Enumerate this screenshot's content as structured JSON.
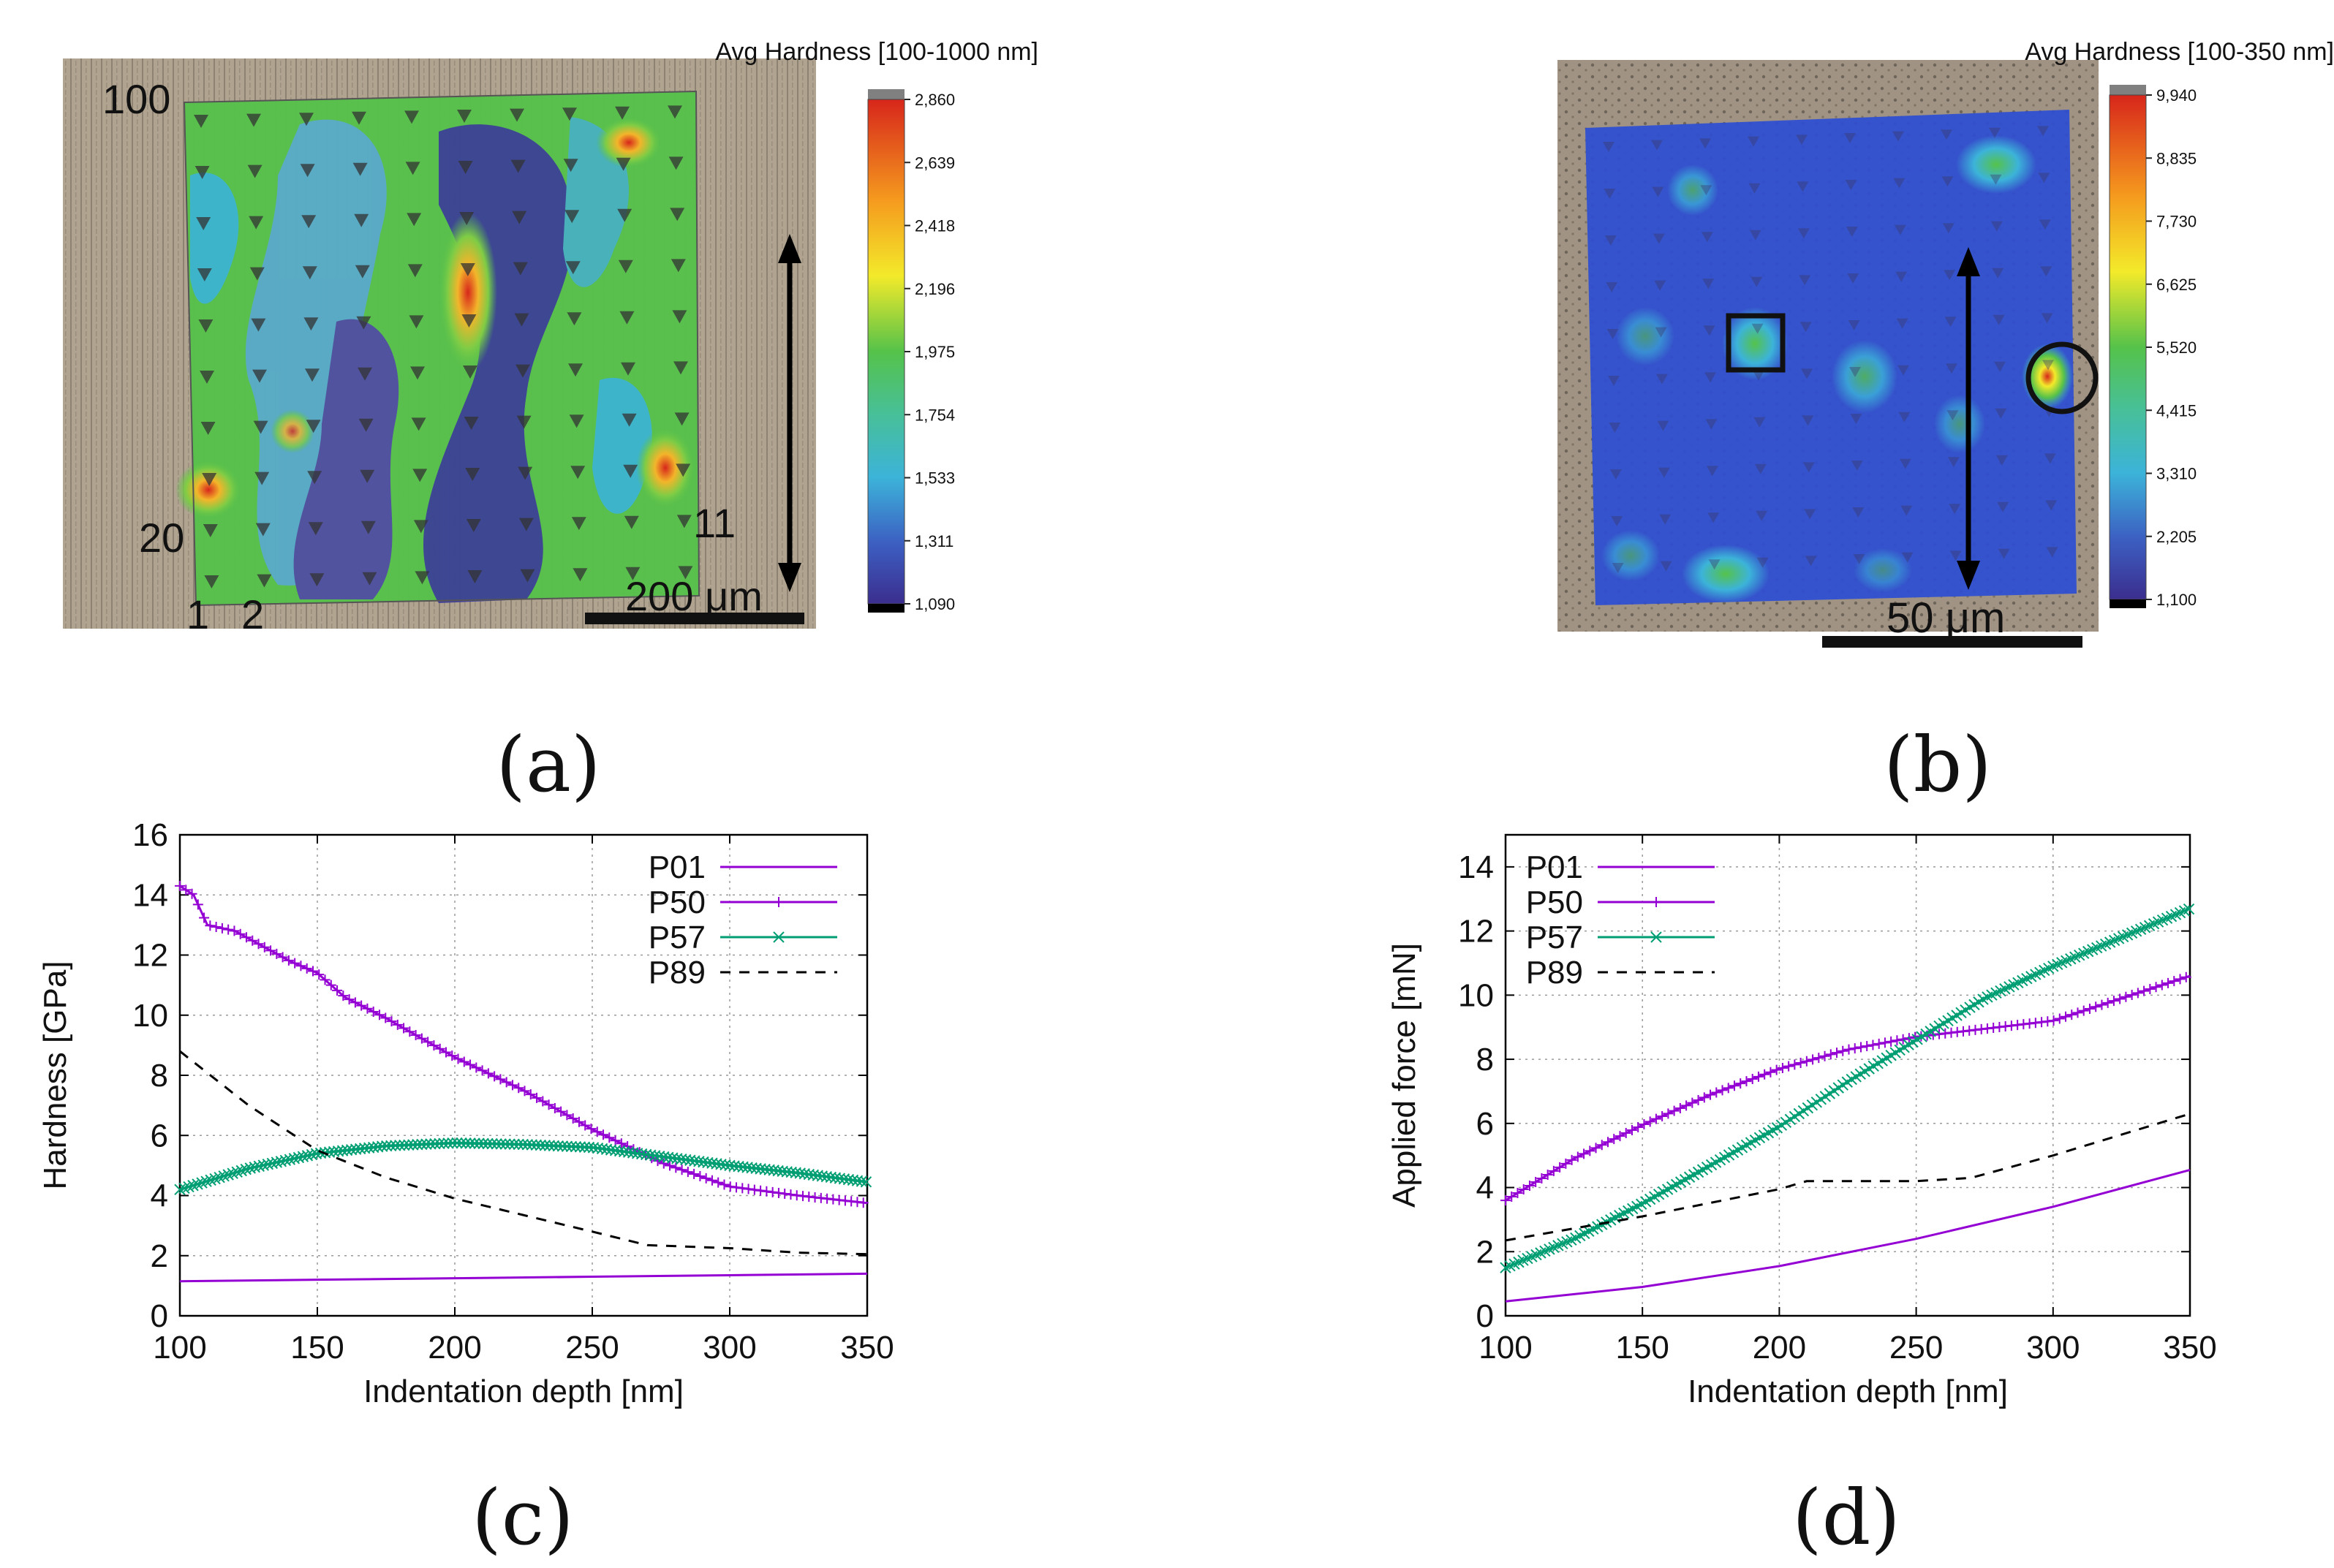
{
  "panels": {
    "a": {
      "caption": "(a)",
      "colorbar_title": "Avg Hardness [100-1000 nm]",
      "colorbar_ticks": [
        "2,860",
        "2,639",
        "2,418",
        "2,196",
        "1,975",
        "1,754",
        "1,533",
        "1,311",
        "1,090"
      ],
      "grid_labels": {
        "top_left": "100",
        "bottom_left_row": "20",
        "bottom_left": "1",
        "bottom_second": "2",
        "right_row": "11"
      },
      "scale_bar": "200 μm",
      "colors": {
        "background_sample": "#a89a86",
        "high": "#d7261b",
        "mid": "#55c24a",
        "low": "#3b3a9a"
      }
    },
    "b": {
      "caption": "(b)",
      "colorbar_title": "Avg Hardness [100-350 nm]",
      "colorbar_ticks": [
        "9,940",
        "8,835",
        "7,730",
        "6,625",
        "5,520",
        "4,415",
        "3,310",
        "2,205",
        "1,100"
      ],
      "scale_bar": "50 μm",
      "colors": {
        "background_sample": "#9a8e80",
        "base": "#2f4fd0"
      }
    },
    "c": {
      "caption": "(c)"
    },
    "d": {
      "caption": "(d)"
    }
  },
  "chart_data": [
    {
      "type": "line",
      "id": "c",
      "xlabel": "Indentation depth [nm]",
      "ylabel": "Hardness [GPa]",
      "xlim": [
        100,
        350
      ],
      "ylim": [
        0,
        16
      ],
      "xticks": [
        100,
        150,
        200,
        250,
        300,
        350
      ],
      "yticks": [
        0,
        2,
        4,
        6,
        8,
        10,
        12,
        14,
        16
      ],
      "grid": true,
      "legend": "top-right",
      "series": [
        {
          "name": "P01",
          "color": "#9400d3",
          "style": "solid",
          "marker": "none",
          "x": [
            100,
            150,
            200,
            250,
            300,
            350
          ],
          "y": [
            1.15,
            1.2,
            1.25,
            1.3,
            1.35,
            1.4
          ]
        },
        {
          "name": "P50",
          "color": "#9400d3",
          "style": "solid",
          "marker": "plus",
          "x": [
            100,
            105,
            110,
            120,
            130,
            140,
            150,
            160,
            175,
            200,
            225,
            250,
            275,
            300,
            325,
            350
          ],
          "y": [
            14.3,
            14.0,
            13.0,
            12.8,
            12.3,
            11.8,
            11.4,
            10.6,
            9.9,
            8.6,
            7.5,
            6.2,
            5.1,
            4.3,
            4.0,
            3.75
          ]
        },
        {
          "name": "P57",
          "color": "#009e73",
          "style": "solid",
          "marker": "x",
          "x": [
            100,
            125,
            150,
            175,
            200,
            225,
            250,
            275,
            300,
            325,
            350
          ],
          "y": [
            4.2,
            4.9,
            5.4,
            5.65,
            5.75,
            5.7,
            5.6,
            5.3,
            5.0,
            4.75,
            4.45
          ]
        },
        {
          "name": "P89",
          "color": "#000000",
          "style": "dashed",
          "marker": "none",
          "x": [
            100,
            125,
            150,
            175,
            200,
            225,
            250,
            270,
            300,
            325,
            350
          ],
          "y": [
            8.8,
            7.0,
            5.5,
            4.6,
            3.9,
            3.35,
            2.8,
            2.35,
            2.25,
            2.1,
            2.05
          ]
        }
      ]
    },
    {
      "type": "line",
      "id": "d",
      "xlabel": "Indentation depth [nm]",
      "ylabel": "Applied force [mN]",
      "xlim": [
        100,
        350
      ],
      "ylim": [
        0,
        15
      ],
      "xticks": [
        100,
        150,
        200,
        250,
        300,
        350
      ],
      "yticks": [
        0,
        2,
        4,
        6,
        8,
        10,
        12,
        14
      ],
      "grid": true,
      "legend": "top-left",
      "series": [
        {
          "name": "P01",
          "color": "#9400d3",
          "style": "solid",
          "marker": "none",
          "x": [
            100,
            150,
            200,
            250,
            300,
            350
          ],
          "y": [
            0.45,
            0.9,
            1.55,
            2.4,
            3.4,
            4.55
          ]
        },
        {
          "name": "P50",
          "color": "#9400d3",
          "style": "solid",
          "marker": "plus",
          "x": [
            100,
            125,
            150,
            175,
            200,
            225,
            250,
            275,
            300,
            325,
            350
          ],
          "y": [
            3.6,
            4.9,
            5.95,
            6.9,
            7.7,
            8.3,
            8.7,
            8.95,
            9.2,
            9.9,
            10.6
          ]
        },
        {
          "name": "P57",
          "color": "#009e73",
          "style": "solid",
          "marker": "x",
          "x": [
            100,
            125,
            150,
            175,
            200,
            225,
            250,
            275,
            300,
            325,
            350
          ],
          "y": [
            1.5,
            2.4,
            3.5,
            4.7,
            5.9,
            7.3,
            8.6,
            9.9,
            10.9,
            11.8,
            12.7
          ]
        },
        {
          "name": "P89",
          "color": "#000000",
          "style": "dashed",
          "marker": "none",
          "x": [
            100,
            150,
            200,
            210,
            250,
            270,
            300,
            350
          ],
          "y": [
            2.35,
            3.1,
            3.95,
            4.2,
            4.2,
            4.3,
            5.0,
            6.3
          ]
        }
      ]
    }
  ]
}
